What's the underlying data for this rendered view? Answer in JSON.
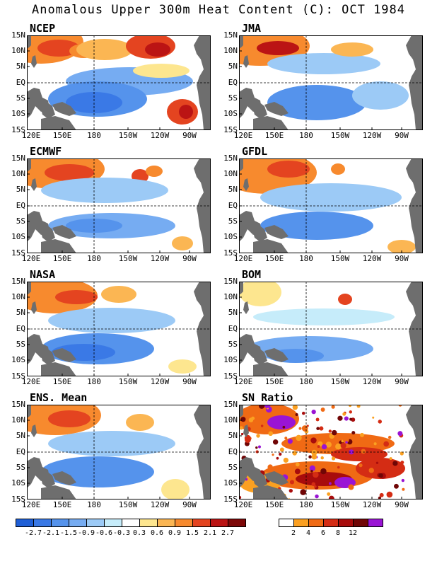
{
  "title": "Anomalous Upper 300m Heat Content (C): OCT 1984",
  "panels": [
    {
      "label": "NCEP"
    },
    {
      "label": "JMA"
    },
    {
      "label": "ECMWF"
    },
    {
      "label": "GFDL"
    },
    {
      "label": "NASA"
    },
    {
      "label": "BOM"
    },
    {
      "label": "ENS. Mean"
    },
    {
      "label": "SN Ratio"
    }
  ],
  "lat_labels": [
    "15N",
    "10N",
    "5N",
    "EQ",
    "5S",
    "10S",
    "15S"
  ],
  "lon_labels": [
    "120E",
    "150E",
    "180",
    "150W",
    "120W",
    "90W"
  ],
  "anomaly_colorbar": {
    "labels": [
      "-2.7",
      "-2.1",
      "-1.5",
      "-0.9",
      "-0.6",
      "-0.3",
      "0.3",
      "0.6",
      "0.9",
      "1.5",
      "2.1",
      "2.7"
    ],
    "colors": [
      "#1f5fd6",
      "#3a79e6",
      "#5593ec",
      "#76acf2",
      "#9ccaf6",
      "#c6ecfa",
      "#ffffff",
      "#fde68f",
      "#fbb653",
      "#f78a2e",
      "#e44420",
      "#bb1414",
      "#7d0808"
    ]
  },
  "sn_colorbar": {
    "labels": [
      "2",
      "4",
      "6",
      "8",
      "12"
    ],
    "colors": [
      "#ffffff",
      "#fba021",
      "#f06a14",
      "#d42c14",
      "#a80c0c",
      "#700606",
      "#9a14d4"
    ]
  },
  "colors": {
    "land": "#6e6e6e",
    "ocean": "#ffffff"
  }
}
